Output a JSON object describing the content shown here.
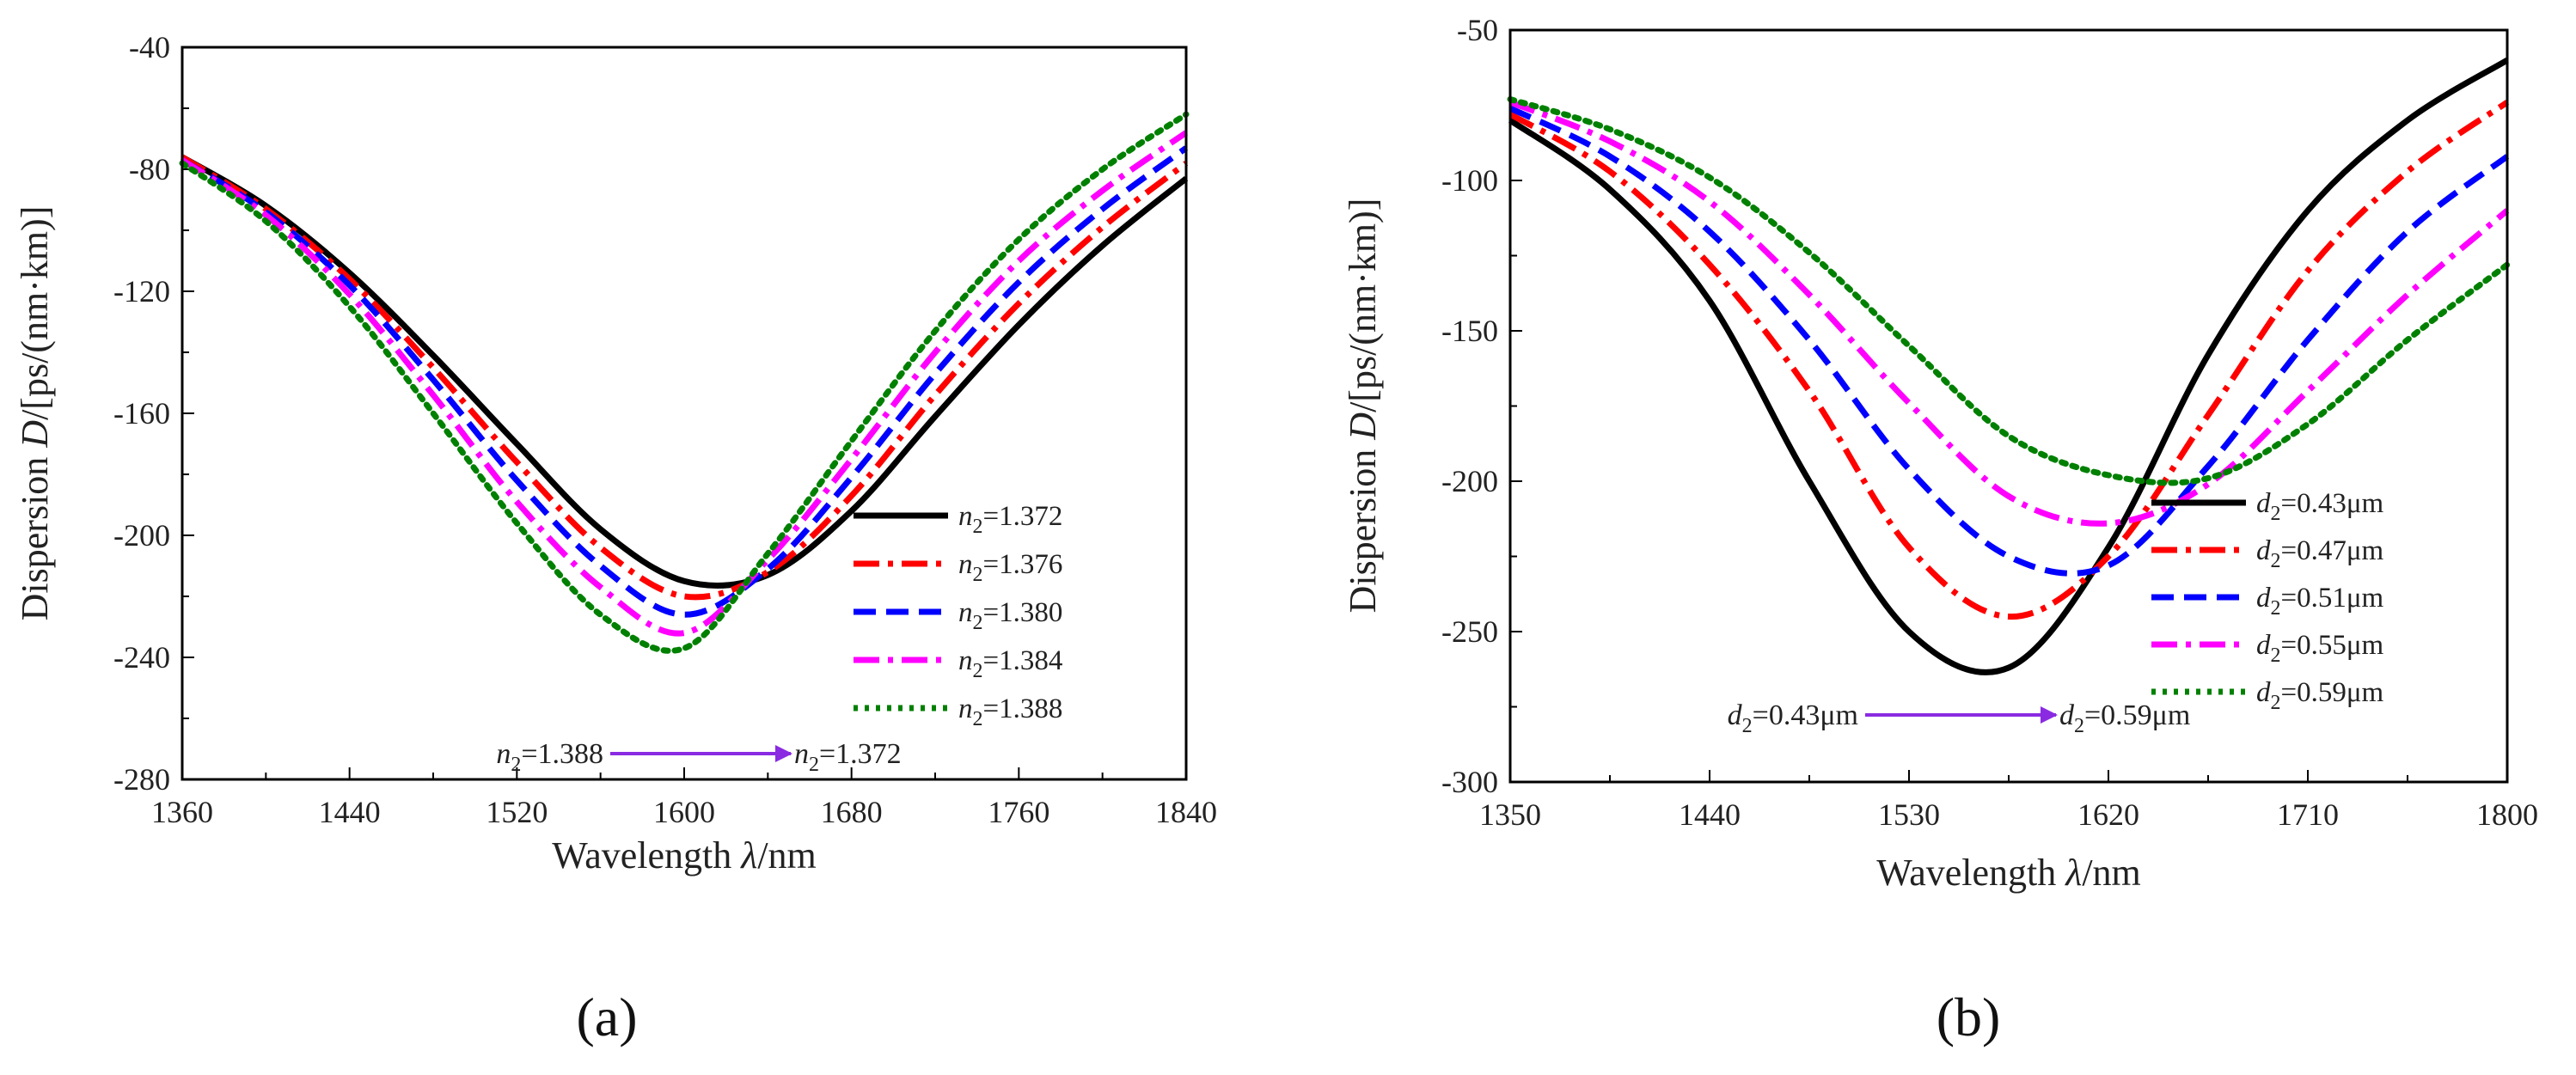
{
  "chart_data": [
    {
      "type": "line",
      "panel_label": "(a)",
      "xlabel": "Wavelength λ/nm",
      "ylabel": "Dispersion D/[ps/(nm·km)]",
      "xlim": [
        1360,
        1840
      ],
      "ylim": [
        -280,
        -40
      ],
      "xticks": [
        1360,
        1440,
        1520,
        1600,
        1680,
        1760,
        1840
      ],
      "yticks": [
        -40,
        -80,
        -120,
        -160,
        -200,
        -240,
        -280
      ],
      "x": [
        1360,
        1400,
        1440,
        1480,
        1520,
        1560,
        1600,
        1640,
        1680,
        1720,
        1760,
        1800,
        1840
      ],
      "series": [
        {
          "name": "n2=1.372",
          "sym": "n",
          "sub": "2",
          "val": "=1.372",
          "color": "#000000",
          "dash": "solid",
          "values": [
            -76,
            -92,
            -114,
            -141,
            -170,
            -198,
            -215,
            -213,
            -192,
            -161,
            -131,
            -105,
            -83
          ]
        },
        {
          "name": "n2=1.376",
          "sym": "n",
          "sub": "2",
          "val": "=1.376",
          "color": "#ff0000",
          "dash": "dashdot",
          "values": [
            -76,
            -93,
            -116,
            -145,
            -176,
            -204,
            -220,
            -212,
            -187,
            -154,
            -124,
            -99,
            -78
          ]
        },
        {
          "name": "n2=1.380",
          "sym": "n",
          "sub": "2",
          "val": "=1.380",
          "color": "#0000ff",
          "dash": "dash",
          "values": [
            -77,
            -94,
            -118,
            -149,
            -182,
            -210,
            -226,
            -211,
            -181,
            -147,
            -117,
            -93,
            -73
          ]
        },
        {
          "name": "n2=1.384",
          "sym": "n",
          "sub": "2",
          "val": "=1.384",
          "color": "#ff00ff",
          "dash": "dashdot",
          "values": [
            -77,
            -95,
            -121,
            -154,
            -189,
            -217,
            -232,
            -208,
            -175,
            -140,
            -110,
            -87,
            -68
          ]
        },
        {
          "name": "n2=1.388",
          "sym": "n",
          "sub": "2",
          "val": "=1.388",
          "color": "#008000",
          "dash": "dot",
          "values": [
            -78,
            -97,
            -125,
            -160,
            -196,
            -226,
            -237,
            -206,
            -169,
            -133,
            -103,
            -80,
            -62
          ]
        }
      ],
      "annotation": {
        "from_sym": "n",
        "from_sub": "2",
        "from_val": "=1.388",
        "to_sym": "n",
        "to_sub": "2",
        "to_val": "=1.372",
        "arrow_color": "#8a2be2"
      }
    },
    {
      "type": "line",
      "panel_label": "(b)",
      "xlabel": "Wavelength λ/nm",
      "ylabel": "Dispersion D/[ps/(nm·km)]",
      "xlim": [
        1350,
        1800
      ],
      "ylim": [
        -300,
        -50
      ],
      "xticks": [
        1350,
        1440,
        1530,
        1620,
        1710,
        1800
      ],
      "yticks": [
        -50,
        -100,
        -150,
        -200,
        -250,
        -300
      ],
      "x": [
        1350,
        1395,
        1440,
        1485,
        1530,
        1575,
        1620,
        1665,
        1710,
        1755,
        1800
      ],
      "series": [
        {
          "name": "d2=0.43μm",
          "sym": "d",
          "sub": "2",
          "val": "=0.43μm",
          "color": "#000000",
          "dash": "solid",
          "values": [
            -80,
            -103,
            -140,
            -200,
            -250,
            -262,
            -222,
            -158,
            -110,
            -80,
            -60
          ]
        },
        {
          "name": "d2=0.47μm",
          "sym": "d",
          "sub": "2",
          "val": "=0.47μm",
          "color": "#ff0000",
          "dash": "dashdot",
          "values": [
            -78,
            -97,
            -128,
            -170,
            -222,
            -245,
            -225,
            -178,
            -130,
            -97,
            -74
          ]
        },
        {
          "name": "d2=0.51μm",
          "sym": "d",
          "sub": "2",
          "val": "=0.51μm",
          "color": "#0000ff",
          "dash": "dash",
          "values": [
            -76,
            -92,
            -117,
            -153,
            -196,
            -225,
            -228,
            -195,
            -153,
            -117,
            -92
          ]
        },
        {
          "name": "d2=0.55μm",
          "sym": "d",
          "sub": "2",
          "val": "=0.55μm",
          "color": "#ff00ff",
          "dash": "dashdot",
          "values": [
            -74,
            -87,
            -107,
            -138,
            -174,
            -205,
            -214,
            -201,
            -170,
            -138,
            -110
          ]
        },
        {
          "name": "d2=0.59μm",
          "sym": "d",
          "sub": "2",
          "val": "=0.59μm",
          "color": "#008000",
          "dash": "dot",
          "values": [
            -73,
            -83,
            -99,
            -124,
            -155,
            -185,
            -198,
            -199,
            -181,
            -153,
            -128
          ]
        }
      ],
      "annotation": {
        "from_sym": "d",
        "from_sub": "2",
        "from_val": "=0.43μm",
        "to_sym": "d",
        "to_sub": "2",
        "to_val": "=0.59μm",
        "arrow_color": "#8a2be2"
      }
    }
  ]
}
